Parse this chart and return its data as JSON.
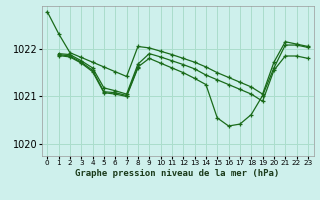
{
  "title": "Graphe pression niveau de la mer (hPa)",
  "bg_color": "#cef0ec",
  "grid_color": "#aaddcc",
  "line_color": "#1a6b1a",
  "xlim": [
    -0.5,
    23.5
  ],
  "ylim": [
    1019.75,
    1022.9
  ],
  "yticks": [
    1020,
    1021,
    1022
  ],
  "xtick_labels": [
    "0",
    "1",
    "2",
    "3",
    "4",
    "5",
    "6",
    "7",
    "8",
    "9",
    "10",
    "11",
    "12",
    "13",
    "14",
    "15",
    "16",
    "17",
    "18",
    "19",
    "20",
    "21",
    "22",
    "23"
  ],
  "series": [
    {
      "x": [
        0,
        1,
        2,
        3,
        4,
        5,
        6,
        7,
        8,
        9,
        10,
        11,
        12,
        13,
        14,
        15,
        16,
        17,
        18,
        19,
        20,
        21,
        22,
        23
      ],
      "y": [
        1022.78,
        1022.32,
        1021.92,
        1021.82,
        1021.72,
        1021.62,
        1021.52,
        1021.42,
        1022.05,
        1022.02,
        1021.95,
        1021.88,
        1021.8,
        1021.72,
        1021.62,
        1021.5,
        1021.4,
        1021.3,
        1021.2,
        1021.05,
        1021.72,
        1022.15,
        1022.1,
        1022.05
      ]
    },
    {
      "x": [
        1,
        2,
        3,
        4,
        5,
        6,
        7,
        8,
        9,
        10,
        11,
        12,
        13,
        14,
        15,
        16,
        17,
        18,
        19,
        20,
        21,
        22,
        23
      ],
      "y": [
        1021.9,
        1021.88,
        1021.75,
        1021.6,
        1021.18,
        1021.12,
        1021.05,
        1021.68,
        1021.9,
        1021.83,
        1021.75,
        1021.67,
        1021.58,
        1021.45,
        1021.35,
        1021.25,
        1021.15,
        1021.05,
        1020.9,
        1021.55,
        1021.85,
        1021.85,
        1021.8
      ]
    },
    {
      "x": [
        1,
        2,
        3,
        4,
        5,
        6,
        7,
        8,
        9,
        10,
        11,
        12,
        13,
        14,
        15,
        16,
        17,
        18,
        19,
        20,
        21,
        22,
        23
      ],
      "y": [
        1021.88,
        1021.85,
        1021.72,
        1021.55,
        1021.1,
        1021.08,
        1021.02,
        1021.62,
        1021.8,
        1021.7,
        1021.6,
        1021.5,
        1021.38,
        1021.25,
        1020.55,
        1020.38,
        1020.42,
        1020.62,
        1021.02,
        1021.6,
        1022.08,
        1022.08,
        1022.03
      ]
    },
    {
      "x": [
        1,
        2,
        3,
        4,
        5,
        6,
        7,
        8
      ],
      "y": [
        1021.86,
        1021.83,
        1021.7,
        1021.52,
        1021.08,
        1021.05,
        1021.0,
        1021.6
      ]
    }
  ]
}
